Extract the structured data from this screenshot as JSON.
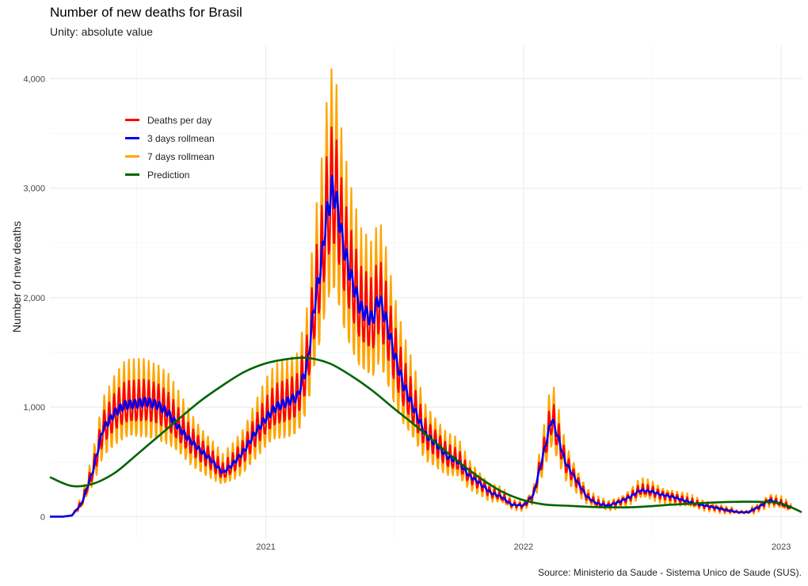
{
  "header": {
    "title": "Number of new deaths for Brasil",
    "subtitle": "Unity: absolute value",
    "caption": "Source: Ministerio da Saude - Sistema Unico de Saude (SUS)."
  },
  "colors": {
    "deaths": "#ff0000",
    "roll3": "#0000ee",
    "roll7": "#ffa500",
    "prediction": "#006400",
    "grid_major": "#e8e8e8",
    "grid_minor": "#f3f3f3"
  },
  "legend": {
    "items": [
      {
        "label": "Deaths per day",
        "color": "#ff0000"
      },
      {
        "label": "3 days rollmean",
        "color": "#0000ee"
      },
      {
        "label": "7 days rollmean",
        "color": "#ffa500"
      },
      {
        "label": "Prediction",
        "color": "#006400"
      }
    ]
  },
  "chart_data": {
    "type": "line",
    "title": "Number of new deaths for Brasil",
    "subtitle": "Unity: absolute value",
    "xlabel": "",
    "ylabel": "Number of new deaths",
    "xlim": [
      "2020-03-01",
      "2023-01-30"
    ],
    "ylim": [
      -200,
      4300
    ],
    "x_ticks": [
      "2021",
      "2022",
      "2023"
    ],
    "x_tick_dates": [
      "2021-01-01",
      "2022-01-01",
      "2023-01-01"
    ],
    "y_ticks": [
      0,
      1000,
      2000,
      3000,
      4000
    ],
    "y_tick_labels": [
      "0",
      "1,000",
      "2,000",
      "3,000",
      "4,000"
    ],
    "grid": true,
    "legend_position": "top-left",
    "weekly_oscillation": true,
    "series": [
      {
        "name": "3 days rollmean",
        "x": [
          "2020-03-01",
          "2020-03-20",
          "2020-04-01",
          "2020-04-15",
          "2020-05-01",
          "2020-05-15",
          "2020-06-01",
          "2020-06-15",
          "2020-07-01",
          "2020-07-15",
          "2020-08-01",
          "2020-08-15",
          "2020-09-01",
          "2020-09-15",
          "2020-10-01",
          "2020-10-15",
          "2020-11-01",
          "2020-11-15",
          "2020-12-01",
          "2020-12-15",
          "2021-01-01",
          "2021-01-15",
          "2021-02-01",
          "2021-02-15",
          "2021-03-01",
          "2021-03-10",
          "2021-03-20",
          "2021-03-27",
          "2021-04-05",
          "2021-04-12",
          "2021-04-20",
          "2021-05-01",
          "2021-05-15",
          "2021-06-01",
          "2021-06-10",
          "2021-06-20",
          "2021-07-01",
          "2021-07-15",
          "2021-08-01",
          "2021-08-15",
          "2021-09-01",
          "2021-09-15",
          "2021-10-01",
          "2021-10-15",
          "2021-11-01",
          "2021-11-15",
          "2021-12-01",
          "2021-12-15",
          "2022-01-01",
          "2022-01-15",
          "2022-02-01",
          "2022-02-10",
          "2022-02-20",
          "2022-03-01",
          "2022-03-15",
          "2022-04-01",
          "2022-04-15",
          "2022-05-01",
          "2022-05-15",
          "2022-06-01",
          "2022-06-15",
          "2022-07-01",
          "2022-07-15",
          "2022-08-01",
          "2022-08-15",
          "2022-09-01",
          "2022-09-15",
          "2022-10-01",
          "2022-10-15",
          "2022-11-01",
          "2022-11-15",
          "2022-12-01",
          "2022-12-15",
          "2023-01-01",
          "2023-01-15"
        ],
        "values": [
          0,
          0,
          10,
          120,
          420,
          800,
          950,
          1020,
          1030,
          1050,
          1020,
          950,
          800,
          700,
          600,
          520,
          400,
          480,
          600,
          750,
          900,
          1000,
          1050,
          1100,
          1400,
          1900,
          2300,
          2700,
          3000,
          2850,
          2500,
          2200,
          1900,
          1800,
          2000,
          1800,
          1500,
          1200,
          950,
          750,
          650,
          550,
          500,
          380,
          300,
          220,
          180,
          110,
          100,
          200,
          650,
          900,
          700,
          500,
          350,
          180,
          120,
          100,
          130,
          180,
          240,
          230,
          200,
          180,
          150,
          120,
          100,
          80,
          60,
          40,
          40,
          90,
          150,
          120,
          80
        ]
      },
      {
        "name": "Prediction",
        "x": [
          "2020-03-01",
          "2020-04-01",
          "2020-05-01",
          "2020-06-01",
          "2020-07-01",
          "2020-08-01",
          "2020-09-01",
          "2020-10-01",
          "2020-11-01",
          "2020-12-01",
          "2021-01-01",
          "2021-02-01",
          "2021-03-01",
          "2021-04-01",
          "2021-05-01",
          "2021-06-01",
          "2021-07-01",
          "2021-08-01",
          "2021-09-01",
          "2021-10-01",
          "2021-11-01",
          "2021-12-01",
          "2022-01-01",
          "2022-02-01",
          "2022-03-01",
          "2022-04-01",
          "2022-05-01",
          "2022-06-01",
          "2022-07-01",
          "2022-08-01",
          "2022-09-01",
          "2022-10-01",
          "2022-11-01",
          "2022-12-01",
          "2023-01-01",
          "2023-01-30"
        ],
        "values": [
          360,
          280,
          300,
          400,
          560,
          730,
          900,
          1060,
          1200,
          1320,
          1400,
          1440,
          1450,
          1400,
          1290,
          1150,
          990,
          830,
          660,
          500,
          350,
          230,
          150,
          110,
          100,
          90,
          85,
          85,
          95,
          110,
          120,
          130,
          135,
          135,
          120,
          40
        ]
      }
    ],
    "derived_series": [
      {
        "name": "Deaths per day",
        "from": "3 days rollmean",
        "weekly_amplitude": 0.2
      },
      {
        "name": "7 days rollmean",
        "from": "3 days rollmean",
        "weekly_amplitude": 0.38
      }
    ]
  }
}
